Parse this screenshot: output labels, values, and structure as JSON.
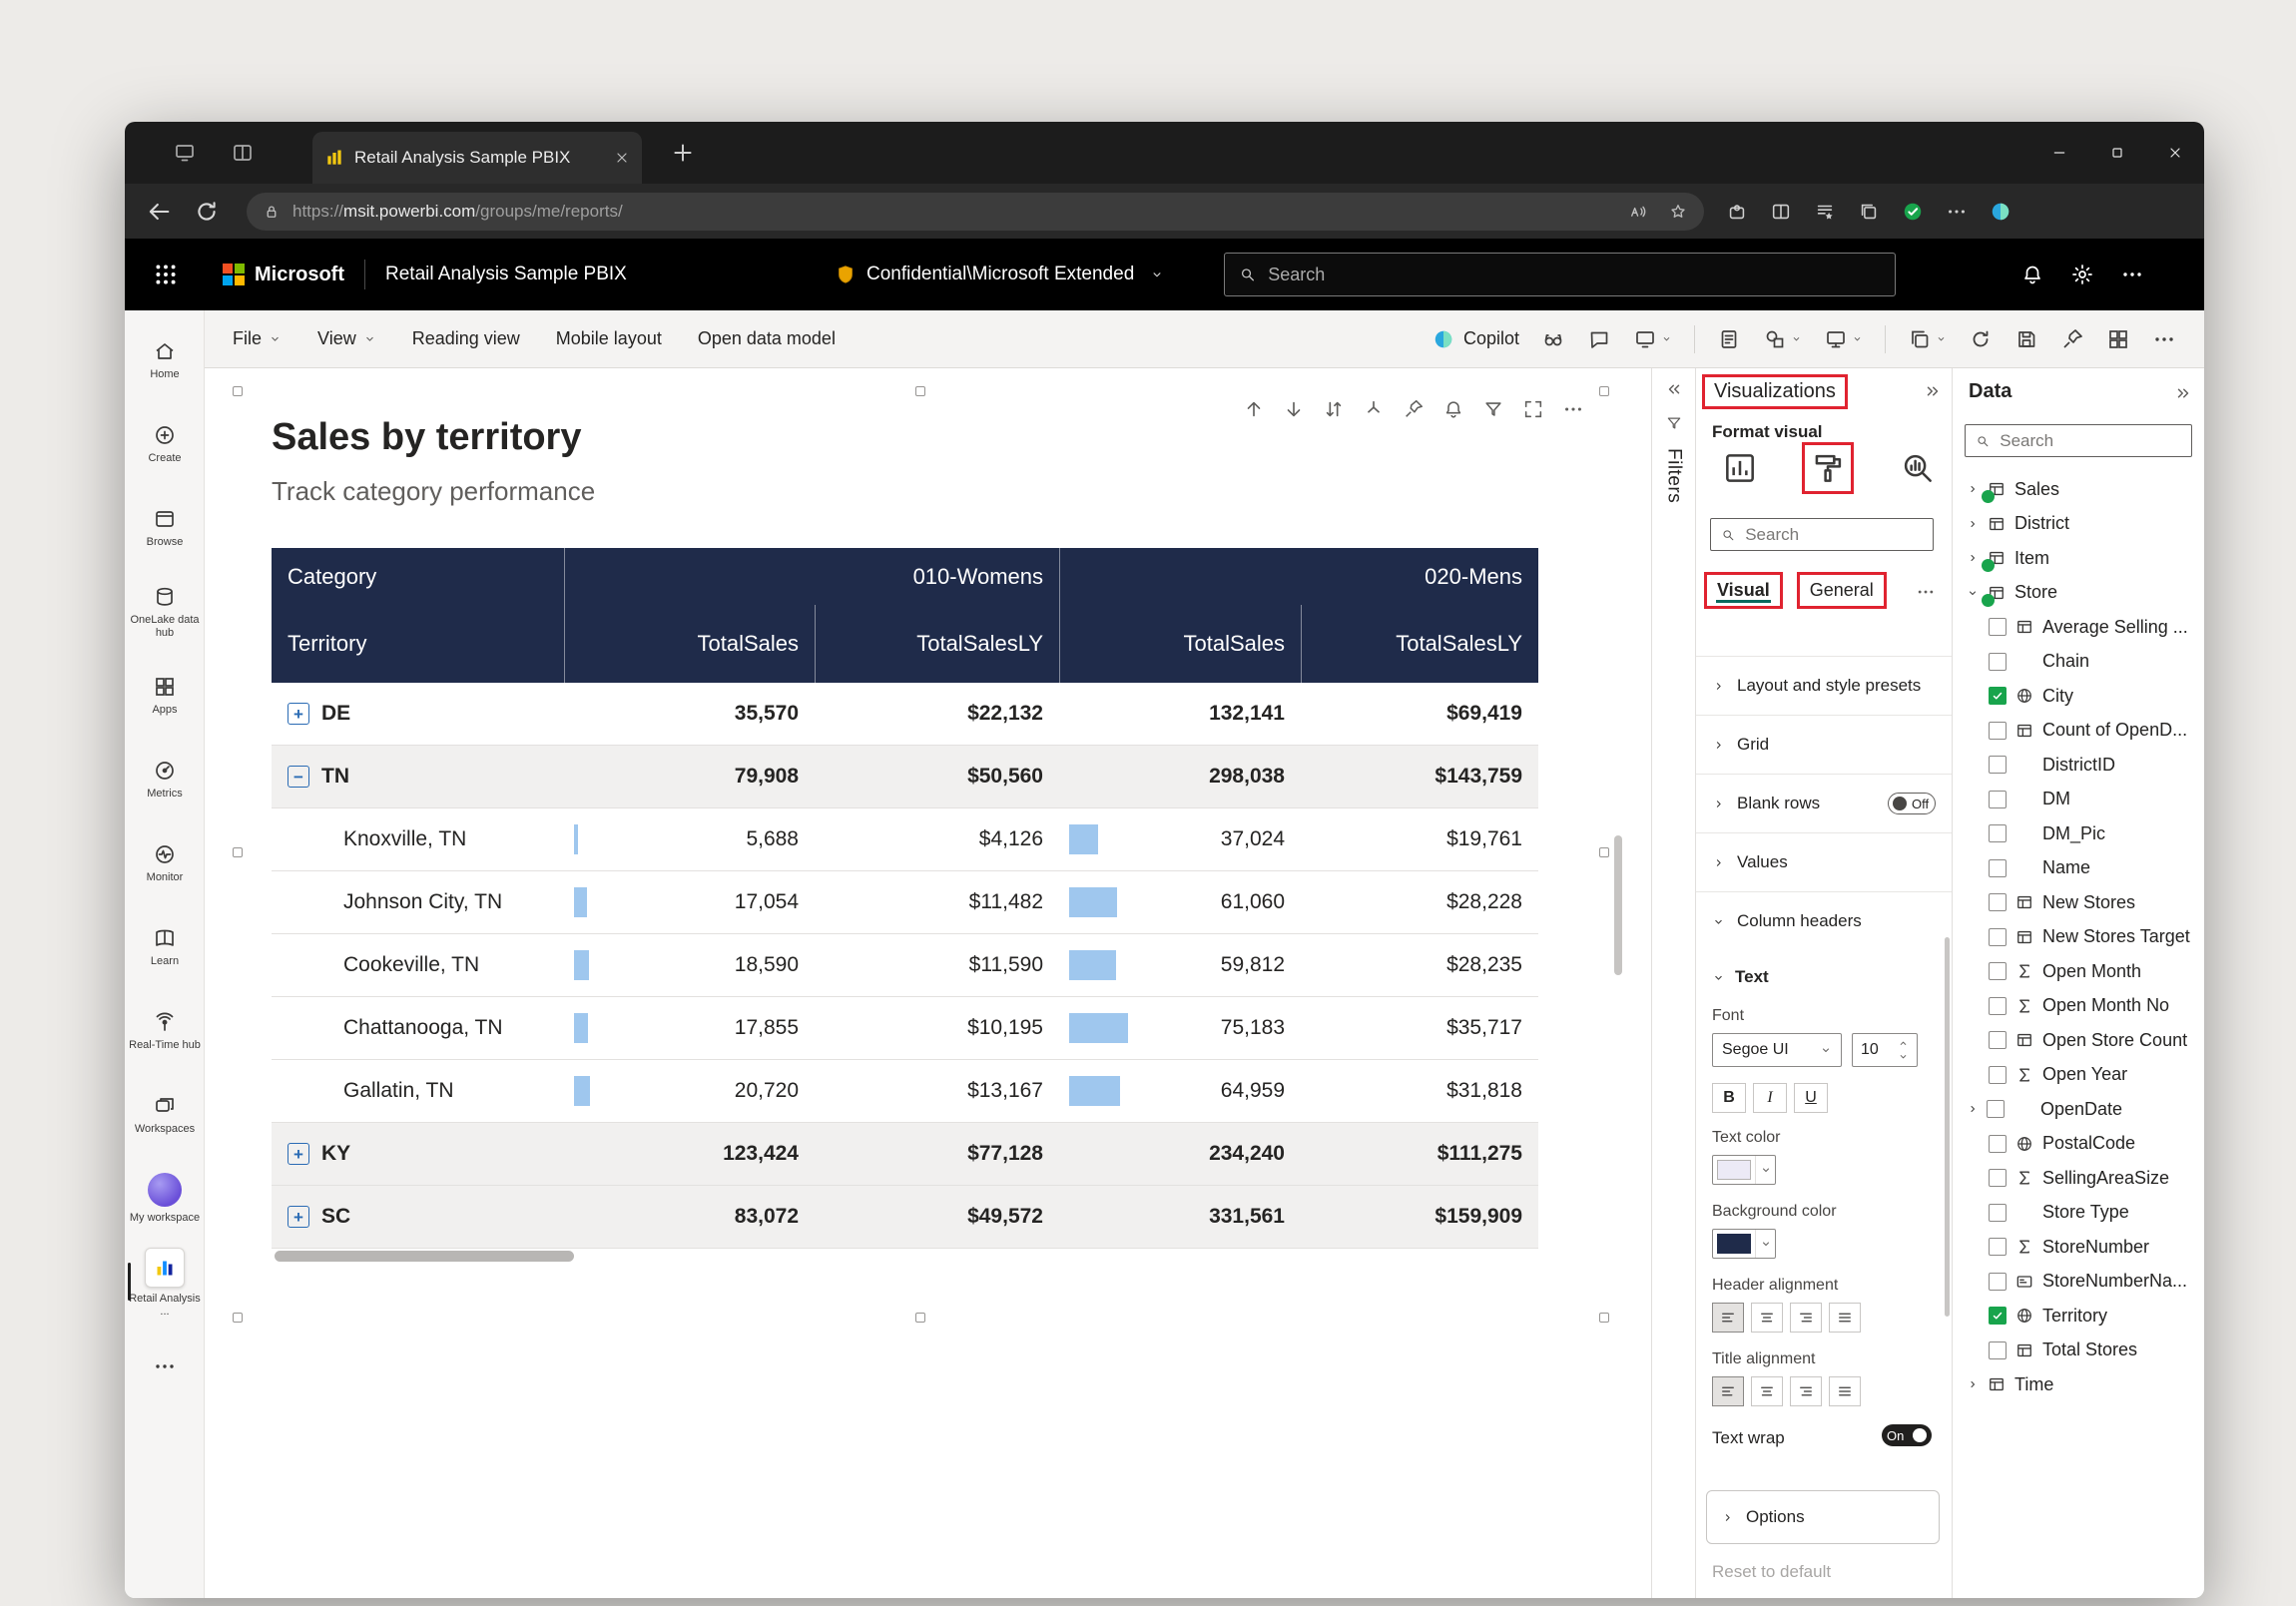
{
  "colors": {
    "highlight_red": "#e02330",
    "table_header_navy": "#1f2b4a",
    "data_bar_blue": "#9fc7ee",
    "check_green": "#18a44c",
    "tab_accent_teal": "#0c695e",
    "favicon_yellow": "#f2c811"
  },
  "browser": {
    "tab_title": "Retail Analysis Sample PBIX",
    "url_scheme": "https://",
    "url_host": "msit.powerbi.com",
    "url_path": "/groups/me/reports/",
    "toolbar_icons": [
      {
        "name": "extensions-icon",
        "icon": "puzzle"
      },
      {
        "name": "split-screen-icon",
        "icon": "split"
      },
      {
        "name": "favorites-icon",
        "icon": "favlist"
      },
      {
        "name": "collections-icon",
        "icon": "collections"
      },
      {
        "name": "password-ok-icon",
        "icon": "check_green"
      },
      {
        "name": "browser-settings-icon",
        "icon": "dots_h"
      },
      {
        "name": "copilot-sidebar-icon",
        "icon": "copilot"
      }
    ]
  },
  "appbar": {
    "brand": "Microsoft",
    "report_name": "Retail Analysis Sample PBIX",
    "sensitivity_label": "Confidential\\Microsoft Extended",
    "search_placeholder": "Search"
  },
  "menu": {
    "items": [
      "File",
      "View",
      "Reading view",
      "Mobile layout",
      "Open data model"
    ],
    "copilot_label": "Copilot",
    "ribbon_icons": [
      {
        "name": "spotlight-icon",
        "icon": "glasses"
      },
      {
        "name": "comments-icon",
        "icon": "chat"
      },
      {
        "name": "present-icon",
        "icon": "tv",
        "chevron": true
      },
      {
        "name": "divider"
      },
      {
        "name": "export-icon",
        "icon": "note"
      },
      {
        "name": "shapes-icon",
        "icon": "shapes",
        "chevron": true
      },
      {
        "name": "share-screen-icon",
        "icon": "cast",
        "chevron": true
      },
      {
        "name": "divider"
      },
      {
        "name": "duplicate-icon",
        "icon": "copy",
        "chevron": true
      },
      {
        "name": "refresh-icon",
        "icon": "refresh"
      },
      {
        "name": "save-icon",
        "icon": "save"
      },
      {
        "name": "pin-icon",
        "icon": "pin"
      },
      {
        "name": "apps-more-icon",
        "icon": "apps"
      },
      {
        "name": "toolbar-more-icon",
        "icon": "dots_h"
      }
    ]
  },
  "sidebar": {
    "items": [
      {
        "label": "Home",
        "icon": "home"
      },
      {
        "label": "Create",
        "icon": "plus_circle"
      },
      {
        "label": "Browse",
        "icon": "browse"
      },
      {
        "label": "OneLake data hub",
        "icon": "onelake"
      },
      {
        "label": "Apps",
        "icon": "apps"
      },
      {
        "label": "Metrics",
        "icon": "metrics"
      },
      {
        "label": "Monitor",
        "icon": "monitor"
      },
      {
        "label": "Learn",
        "icon": "learn"
      },
      {
        "label": "Real-Time hub",
        "icon": "realtime"
      },
      {
        "label": "Workspaces",
        "icon": "workspaces"
      },
      {
        "label": "My workspace",
        "icon": "avatar"
      },
      {
        "label": "Retail Analysis ...",
        "icon": "report",
        "selected": true
      },
      {
        "label": "",
        "icon": "dots_h"
      }
    ]
  },
  "report": {
    "title": "Sales by territory",
    "subtitle": "Track category performance"
  },
  "visual_toolbar": [
    {
      "name": "move-up-icon",
      "icon": "arrow_up"
    },
    {
      "name": "move-down-icon",
      "icon": "arrow_down"
    },
    {
      "name": "sort-icon",
      "icon": "sort"
    },
    {
      "name": "drill-icon",
      "icon": "drill"
    },
    {
      "name": "pin-visual-icon",
      "icon": "pin"
    },
    {
      "name": "alert-icon",
      "icon": "bell"
    },
    {
      "name": "filter-state-icon",
      "icon": "funnel"
    },
    {
      "name": "focus-mode-icon",
      "icon": "focus"
    },
    {
      "name": "visual-more-icon",
      "icon": "dots_h"
    }
  ],
  "matrix": {
    "corner_label": "Category",
    "row_header": "Territory",
    "column_groups": [
      "010-Womens",
      "020-Mens"
    ],
    "measure_headers": [
      "TotalSales",
      "TotalSalesLY",
      "TotalSales",
      "TotalSalesLY"
    ],
    "bar": {
      "ref_value": 75183,
      "ref_width": 59
    },
    "rows": [
      {
        "label": "DE",
        "level": 0,
        "toggle": "plus",
        "shaded": false,
        "values": [
          "35,570",
          "$22,132",
          "132,141",
          "$69,419"
        ]
      },
      {
        "label": "TN",
        "level": 0,
        "toggle": "minus",
        "shaded": true,
        "values": [
          "79,908",
          "$50,560",
          "298,038",
          "$143,759"
        ]
      },
      {
        "label": "Knoxville, TN",
        "level": 1,
        "values": [
          "5,688",
          "$4,126",
          "37,024",
          "$19,761"
        ]
      },
      {
        "label": "Johnson City, TN",
        "level": 1,
        "values": [
          "17,054",
          "$11,482",
          "61,060",
          "$28,228"
        ]
      },
      {
        "label": "Cookeville, TN",
        "level": 1,
        "values": [
          "18,590",
          "$11,590",
          "59,812",
          "$28,235"
        ]
      },
      {
        "label": "Chattanooga, TN",
        "level": 1,
        "values": [
          "17,855",
          "$10,195",
          "75,183",
          "$35,717"
        ]
      },
      {
        "label": "Gallatin, TN",
        "level": 1,
        "values": [
          "20,720",
          "$13,167",
          "64,959",
          "$31,818"
        ]
      },
      {
        "label": "KY",
        "level": 0,
        "toggle": "plus",
        "shaded": true,
        "values": [
          "123,424",
          "$77,128",
          "234,240",
          "$111,275"
        ]
      },
      {
        "label": "SC",
        "level": 0,
        "toggle": "plus",
        "shaded": true,
        "values": [
          "83,072",
          "$49,572",
          "331,561",
          "$159,909"
        ]
      }
    ]
  },
  "filters": {
    "label": "Filters"
  },
  "viz_pane": {
    "title": "Visualizations",
    "subtitle": "Format visual",
    "search_placeholder": "Search",
    "more": "…",
    "tabs": [
      {
        "label": "Visual",
        "selected": true
      },
      {
        "label": "General",
        "selected": false
      }
    ],
    "sections": [
      {
        "label": "Layout and style presets"
      },
      {
        "label": "Grid"
      },
      {
        "label": "Blank rows",
        "toggle": "Off"
      },
      {
        "label": "Values"
      },
      {
        "label": "Column headers",
        "expanded": true
      }
    ]
  },
  "format": {
    "text_section": "Text",
    "font_label": "Font",
    "font_name": "Segoe UI",
    "font_size": "10",
    "bold": "B",
    "italic": "I",
    "underline": "U",
    "text_color_label": "Text color",
    "text_color": "#eceaf6",
    "background_color_label": "Background color",
    "background_color": "#1f2b4a",
    "header_alignment_label": "Header alignment",
    "title_alignment_label": "Title alignment",
    "alignment_options": [
      "left",
      "center",
      "right",
      "justify"
    ],
    "text_wrap_label": "Text wrap",
    "text_wrap_state": "On",
    "options_label": "Options",
    "reset_label": "Reset to default"
  },
  "data_pane": {
    "title": "Data",
    "search_placeholder": "Search",
    "tables": [
      {
        "name": "Sales",
        "badge": true
      },
      {
        "name": "District",
        "badge": false
      },
      {
        "name": "Item",
        "badge": true
      },
      {
        "name": "Store",
        "badge": true,
        "expanded": true,
        "fields": [
          {
            "name": "Average Selling ...",
            "icon": "table"
          },
          {
            "name": "Chain",
            "icon": "none"
          },
          {
            "name": "City",
            "icon": "globe",
            "checked": true
          },
          {
            "name": "Count of OpenD...",
            "icon": "table"
          },
          {
            "name": "DistrictID",
            "icon": "none"
          },
          {
            "name": "DM",
            "icon": "none"
          },
          {
            "name": "DM_Pic",
            "icon": "none"
          },
          {
            "name": "Name",
            "icon": "none"
          },
          {
            "name": "New Stores",
            "icon": "table"
          },
          {
            "name": "New Stores Target",
            "icon": "table"
          },
          {
            "name": "Open Month",
            "icon": "sigma"
          },
          {
            "name": "Open Month No",
            "icon": "sigma"
          },
          {
            "name": "Open Store Count",
            "icon": "table"
          },
          {
            "name": "Open Year",
            "icon": "sigma"
          },
          {
            "name": "OpenDate",
            "icon": "none",
            "chevron": true
          },
          {
            "name": "PostalCode",
            "icon": "globe"
          },
          {
            "name": "SellingAreaSize",
            "icon": "sigma"
          },
          {
            "name": "Store Type",
            "icon": "none"
          },
          {
            "name": "StoreNumber",
            "icon": "sigma"
          },
          {
            "name": "StoreNumberNa...",
            "icon": "card"
          },
          {
            "name": "Territory",
            "icon": "globe",
            "checked": true
          },
          {
            "name": "Total Stores",
            "icon": "table"
          }
        ]
      },
      {
        "name": "Time",
        "badge": false
      }
    ]
  }
}
